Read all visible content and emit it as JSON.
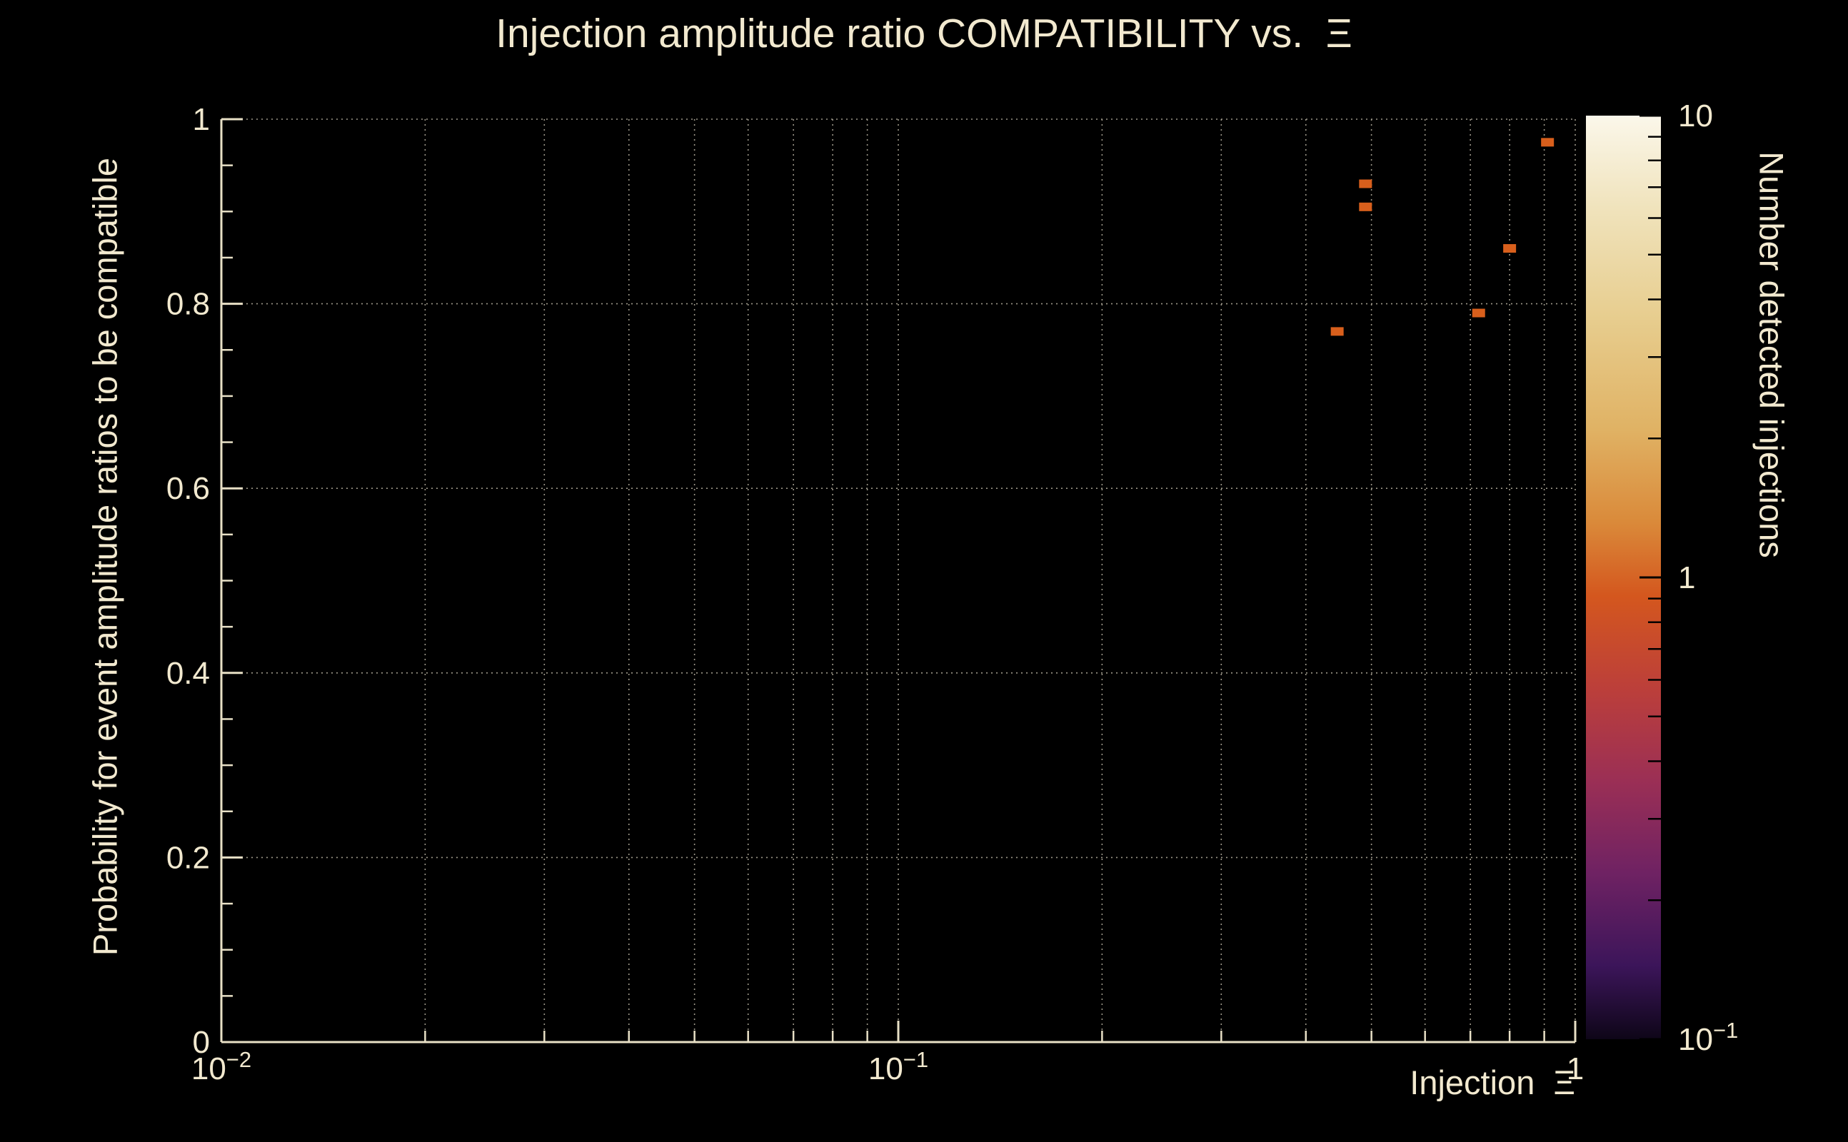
{
  "chart_data": {
    "type": "scatter",
    "title": "Injection amplitude ratio COMPATIBILITY vs.  Ξ",
    "xlabel": "Injection  Ξ",
    "ylabel": "Probability for event amplitude ratios to be compatible",
    "x_scale": "log",
    "xlim": [
      0.01,
      1
    ],
    "y_scale": "linear",
    "ylim": [
      0,
      1
    ],
    "grid": true,
    "legend": "none",
    "x_ticks": [
      {
        "value": 0.01,
        "text": "10",
        "sup": "−2"
      },
      {
        "value": 0.1,
        "text": "10",
        "sup": "−1"
      },
      {
        "value": 1,
        "text": "1"
      }
    ],
    "y_ticks": [
      {
        "value": 0,
        "text": "0"
      },
      {
        "value": 0.2,
        "text": "0.2"
      },
      {
        "value": 0.4,
        "text": "0.4"
      },
      {
        "value": 0.6,
        "text": "0.6"
      },
      {
        "value": 0.8,
        "text": "0.8"
      },
      {
        "value": 1,
        "text": "1"
      }
    ],
    "points": [
      {
        "x": 0.445,
        "y": 0.77,
        "value": 1
      },
      {
        "x": 0.49,
        "y": 0.93,
        "value": 1
      },
      {
        "x": 0.49,
        "y": 0.905,
        "value": 1
      },
      {
        "x": 0.72,
        "y": 0.79,
        "value": 1
      },
      {
        "x": 0.8,
        "y": 0.86,
        "value": 1
      },
      {
        "x": 0.91,
        "y": 0.975,
        "value": 1
      }
    ],
    "point_color": "#d85f1c",
    "colorbar": {
      "label": "Number detected injections",
      "scale": "log",
      "range": [
        0.1,
        10
      ],
      "ticks": [
        {
          "value": 10,
          "text": "10"
        },
        {
          "value": 1,
          "text": "1"
        },
        {
          "value": 0.1,
          "text": "10",
          "sup": "−1"
        }
      ],
      "gradient": [
        {
          "offset": 0.0,
          "color": "#fbf7ea"
        },
        {
          "offset": 0.1,
          "color": "#f0e3bc"
        },
        {
          "offset": 0.22,
          "color": "#e7cd8e"
        },
        {
          "offset": 0.34,
          "color": "#e0b264"
        },
        {
          "offset": 0.44,
          "color": "#da8a3a"
        },
        {
          "offset": 0.52,
          "color": "#d4571e"
        },
        {
          "offset": 0.62,
          "color": "#bc3f3a"
        },
        {
          "offset": 0.72,
          "color": "#9b2f55"
        },
        {
          "offset": 0.82,
          "color": "#6f2263"
        },
        {
          "offset": 0.92,
          "color": "#3c155a"
        },
        {
          "offset": 1.0,
          "color": "#0e0618"
        }
      ]
    }
  },
  "colors": {
    "background": "#000000",
    "text": "#f2e9cf",
    "axis": "#e8e0c6",
    "grid": "#9d988a"
  }
}
